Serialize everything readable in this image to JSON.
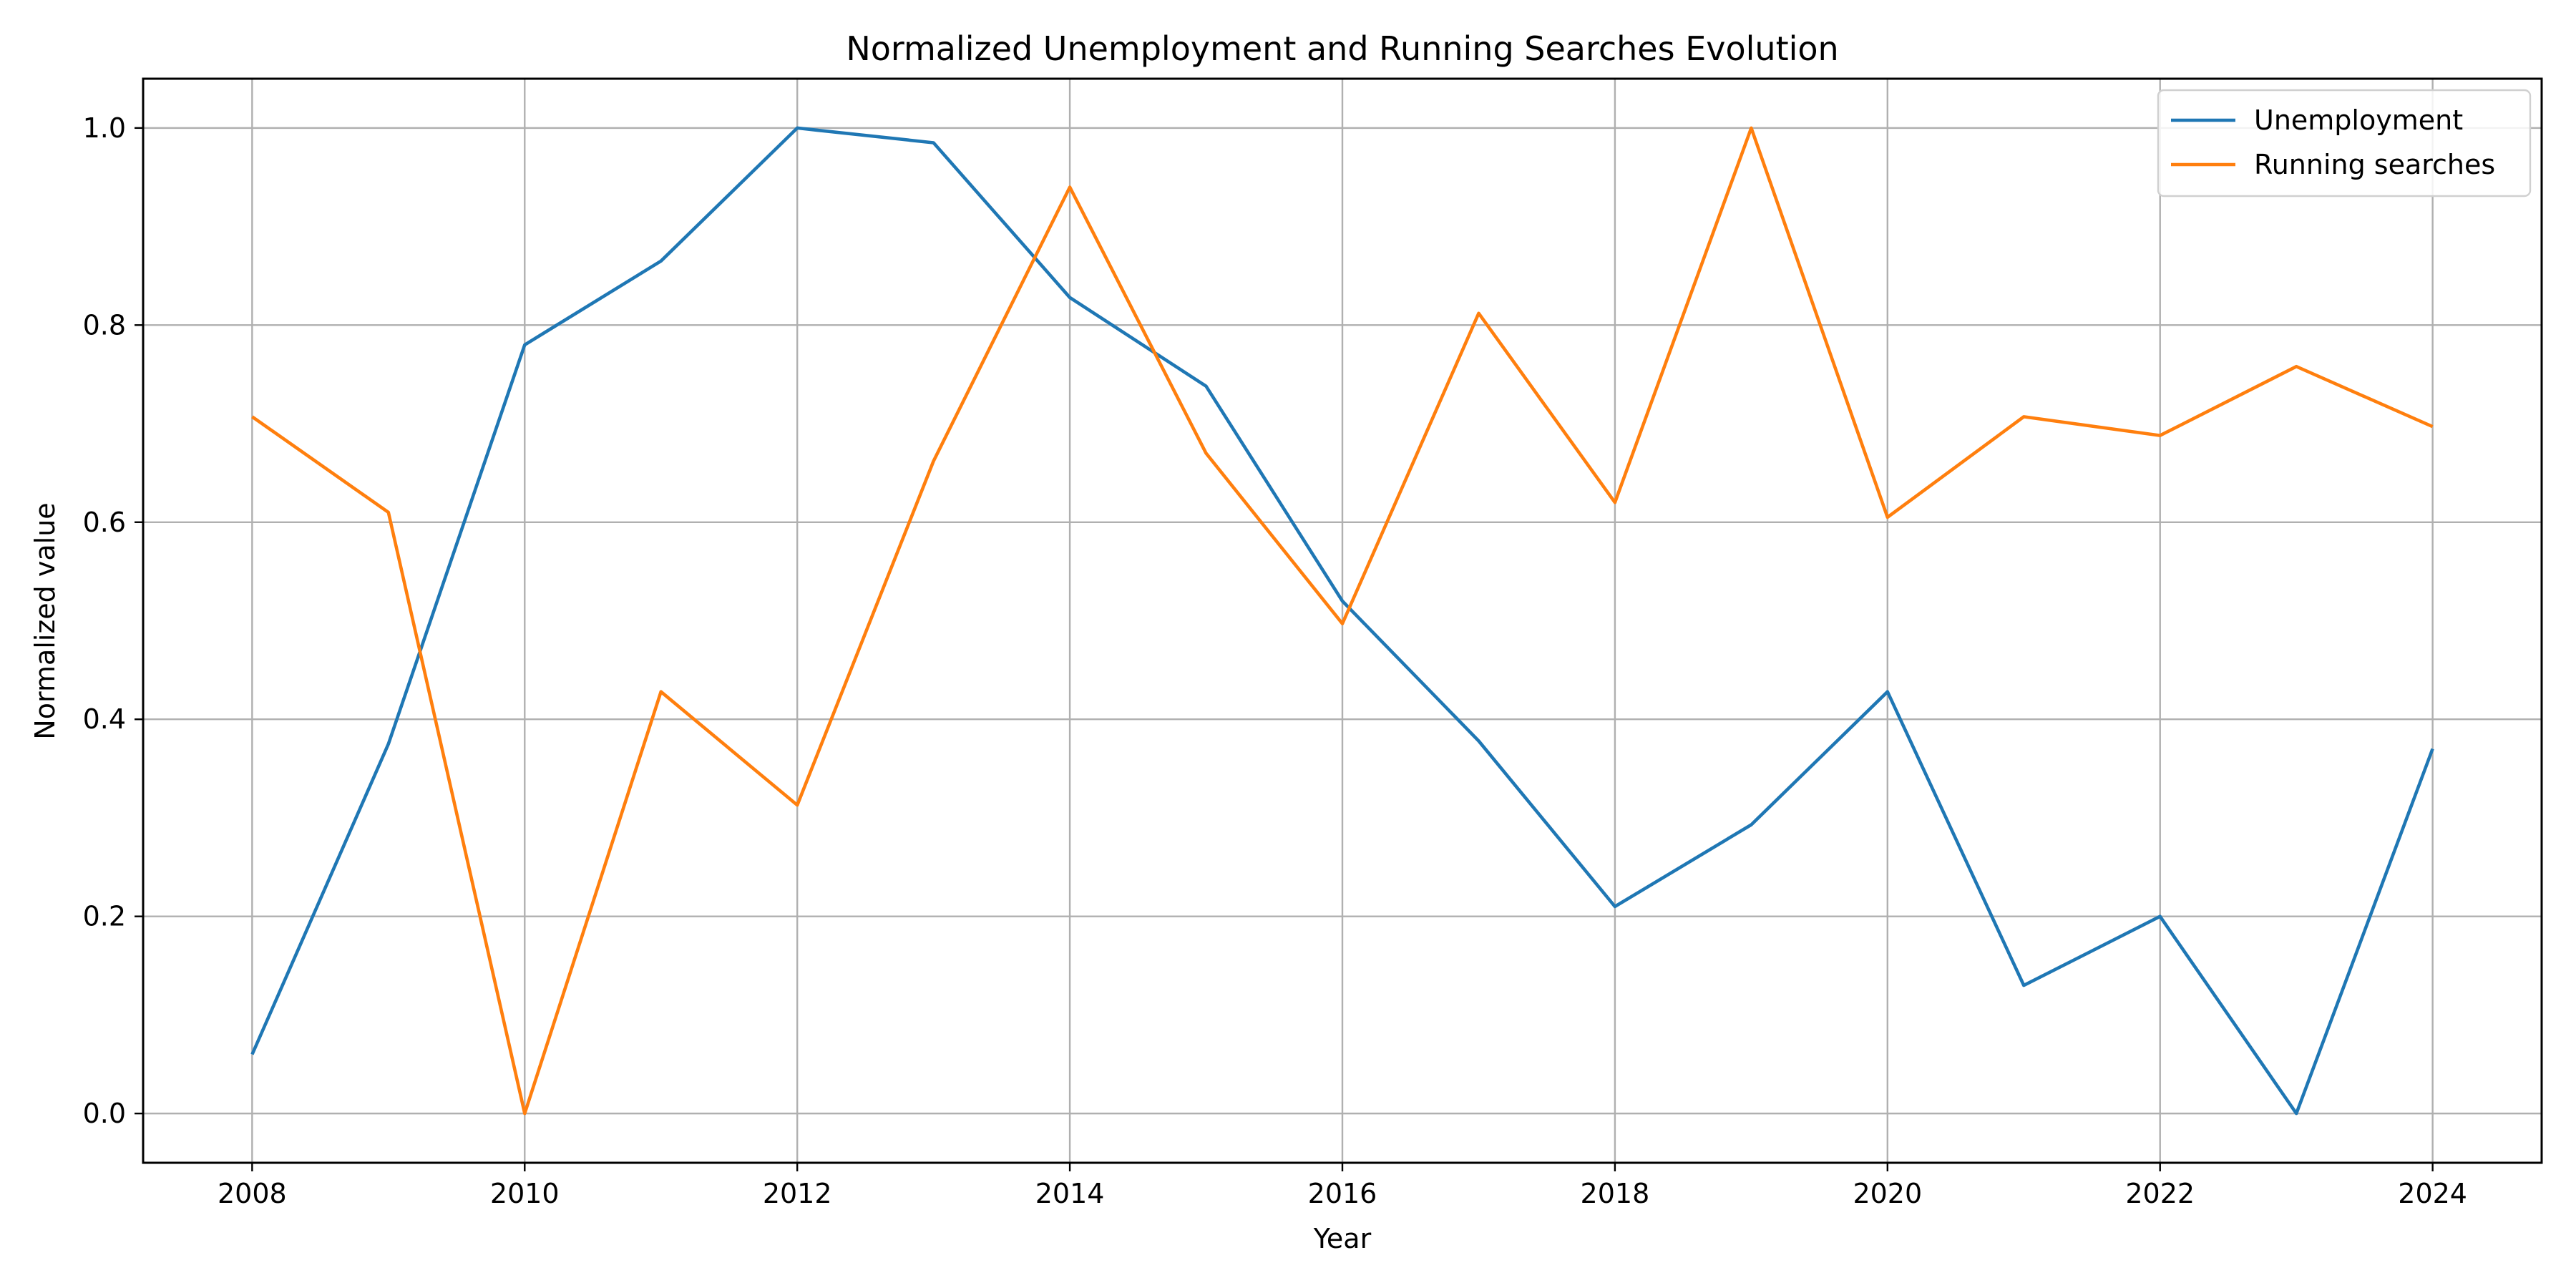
{
  "chart_data": {
    "type": "line",
    "title": "Normalized Unemployment and Running Searches Evolution",
    "xlabel": "Year",
    "ylabel": "Normalized value",
    "x": [
      2008,
      2009,
      2010,
      2011,
      2012,
      2013,
      2014,
      2015,
      2016,
      2017,
      2018,
      2019,
      2020,
      2021,
      2022,
      2023,
      2024
    ],
    "xlim": [
      2007.2,
      2024.8
    ],
    "ylim": [
      -0.05,
      1.05
    ],
    "xticks": [
      "2008",
      "2010",
      "2012",
      "2014",
      "2016",
      "2018",
      "2020",
      "2022",
      "2024"
    ],
    "yticks": [
      "0.0",
      "0.2",
      "0.4",
      "0.6",
      "0.8",
      "1.0"
    ],
    "grid": true,
    "legend_position": "top-right",
    "series": [
      {
        "name": "Unemployment",
        "color": "#1f77b4",
        "values": [
          0.06,
          0.375,
          0.78,
          0.865,
          1.0,
          0.985,
          0.828,
          0.738,
          0.52,
          0.378,
          0.21,
          0.293,
          0.428,
          0.13,
          0.2,
          0.0,
          0.37
        ]
      },
      {
        "name": "Running searches",
        "color": "#ff7f0e",
        "values": [
          0.707,
          0.61,
          0.0,
          0.428,
          0.313,
          0.662,
          0.94,
          0.67,
          0.497,
          0.812,
          0.62,
          1.0,
          0.605,
          0.707,
          0.688,
          0.758,
          0.697
        ]
      }
    ]
  }
}
